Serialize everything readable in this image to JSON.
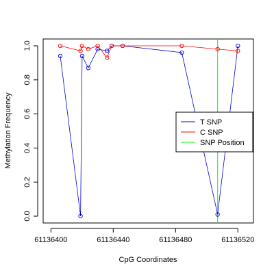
{
  "chart_data": {
    "type": "line",
    "title": "",
    "xlabel": "CpG Coordinates",
    "ylabel": "Methylation Frequency",
    "xlim": [
      61136395,
      61136530
    ],
    "ylim": [
      -0.04,
      1.04
    ],
    "x_ticks": [
      {
        "value": 61136400,
        "label": "61136400"
      },
      {
        "value": 61136440,
        "label": "61136440"
      },
      {
        "value": 61136480,
        "label": "61136480"
      },
      {
        "value": 61136520,
        "label": "61136520"
      }
    ],
    "y_ticks": [
      {
        "value": 0.0,
        "label": "0.0"
      },
      {
        "value": 0.2,
        "label": "0.2"
      },
      {
        "value": 0.4,
        "label": "0.4"
      },
      {
        "value": 0.6,
        "label": "0.6"
      },
      {
        "value": 0.8,
        "label": "0.8"
      },
      {
        "value": 1.0,
        "label": "1.0"
      }
    ],
    "series": [
      {
        "name": "T SNP",
        "color": "#0000cd",
        "points": [
          [
            61136406,
            0.94
          ],
          [
            61136419,
            0.0
          ],
          [
            61136420,
            0.94
          ],
          [
            61136424,
            0.87
          ],
          [
            61136430,
            0.98
          ],
          [
            61136436,
            0.97
          ],
          [
            61136439,
            1.0
          ],
          [
            61136446,
            1.0
          ],
          [
            61136484,
            0.96
          ],
          [
            61136507,
            0.01
          ],
          [
            61136520,
            1.0
          ]
        ]
      },
      {
        "name": "C SNP",
        "color": "#ff0000",
        "points": [
          [
            61136406,
            1.0
          ],
          [
            61136419,
            0.97
          ],
          [
            61136420,
            1.0
          ],
          [
            61136424,
            0.98
          ],
          [
            61136430,
            1.0
          ],
          [
            61136436,
            0.93
          ],
          [
            61136439,
            1.0
          ],
          [
            61136446,
            1.0
          ],
          [
            61136484,
            1.0
          ],
          [
            61136507,
            0.98
          ],
          [
            61136520,
            0.97
          ]
        ]
      }
    ],
    "snp_position": {
      "name": "SNP Position",
      "x": 61136507,
      "color": "#00ff00"
    },
    "legend": {
      "placement": "right",
      "entries": [
        {
          "label": "T SNP",
          "color": "#0000cd"
        },
        {
          "label": "C SNP",
          "color": "#ff0000"
        },
        {
          "label": "SNP Position",
          "color": "#00ff00"
        }
      ]
    },
    "grid": false
  }
}
